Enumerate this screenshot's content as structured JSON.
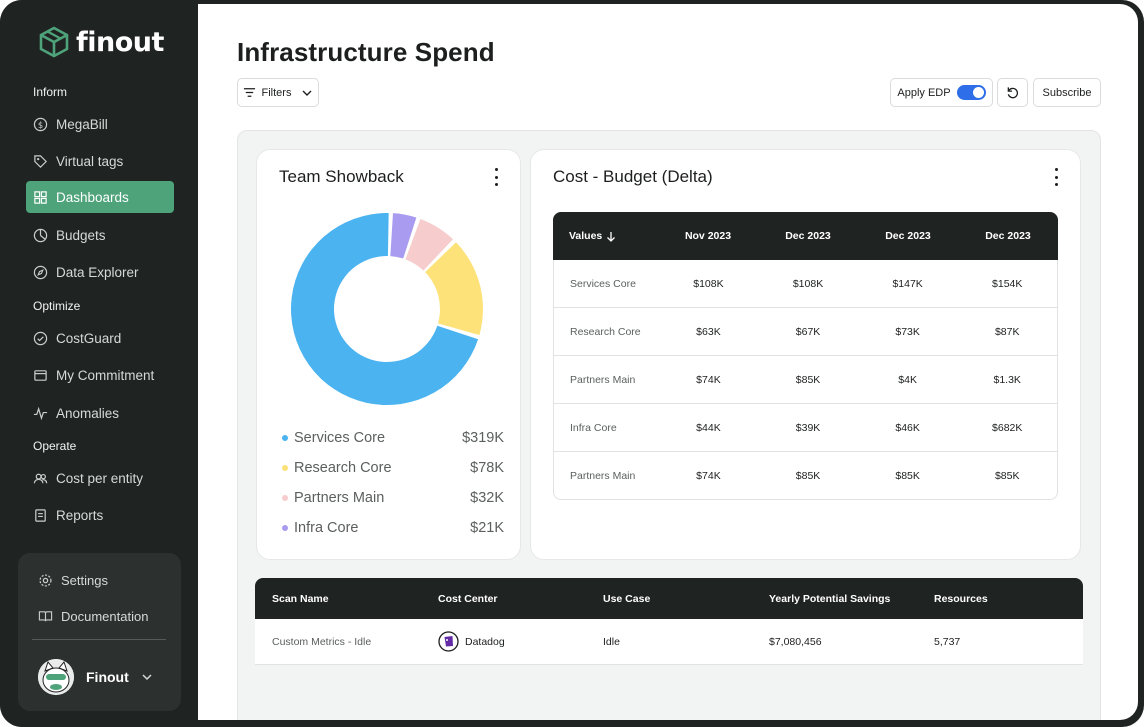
{
  "app": {
    "brand": "finout"
  },
  "sidebar": {
    "sections": {
      "inform": "Inform",
      "optimize": "Optimize",
      "operate": "Operate"
    },
    "items": [
      {
        "label": "MegaBill",
        "icon": "dollar-circle-icon"
      },
      {
        "label": "Virtual tags",
        "icon": "tag-icon"
      },
      {
        "label": "Dashboards",
        "icon": "grid-icon",
        "active": true
      },
      {
        "label": "Budgets",
        "icon": "pie-icon"
      },
      {
        "label": "Data Explorer",
        "icon": "compass-icon"
      },
      {
        "label": "CostGuard",
        "icon": "shield-check-icon"
      },
      {
        "label": "My Commitment",
        "icon": "folder-icon"
      },
      {
        "label": "Anomalies",
        "icon": "pulse-icon"
      },
      {
        "label": "Cost per entity",
        "icon": "users-icon"
      },
      {
        "label": "Reports",
        "icon": "document-icon"
      }
    ],
    "footer": {
      "settings": "Settings",
      "documentation": "Documentation",
      "user": "Finout"
    }
  },
  "header": {
    "title": "Infrastructure Spend",
    "filters_label": "Filters",
    "apply_edp_label": "Apply EDP",
    "apply_edp_on": true,
    "subscribe_label": "Subscribe"
  },
  "colors": {
    "accent": "#4ea37a",
    "dark": "#1f2322",
    "toggle": "#2e6ee8"
  },
  "team_showback": {
    "title": "Team Showback",
    "legend": [
      {
        "label": "Services Core",
        "value": "$319K",
        "color": "#4ab3f0"
      },
      {
        "label": "Research Core",
        "value": "$78K",
        "color": "#fde27a"
      },
      {
        "label": "Partners Main",
        "value": "$32K",
        "color": "#f7cccc"
      },
      {
        "label": "Infra Core",
        "value": "$21K",
        "color": "#a99cf0"
      }
    ]
  },
  "chart_data": {
    "type": "pie",
    "title": "Team Showback",
    "categories": [
      "Infra Core",
      "Partners Main",
      "Research Core",
      "Services Core"
    ],
    "values": [
      21,
      32,
      78,
      319
    ],
    "unit": "$K",
    "colors": [
      "#a99cf0",
      "#f7cccc",
      "#fde27a",
      "#4ab3f0"
    ]
  },
  "budget": {
    "title": "Cost - Budget (Delta)",
    "headers": [
      "Values",
      "Nov 2023",
      "Dec 2023",
      "Dec 2023",
      "Dec 2023"
    ],
    "rows": [
      [
        "Services Core",
        "$108K",
        "$108K",
        "$147K",
        "$154K"
      ],
      [
        "Research Core",
        "$63K",
        "$67K",
        "$73K",
        "$87K"
      ],
      [
        "Partners Main",
        "$74K",
        "$85K",
        "$4K",
        "$1.3K"
      ],
      [
        "Infra Core",
        "$44K",
        "$39K",
        "$46K",
        "$682K"
      ],
      [
        "Partners Main",
        "$74K",
        "$85K",
        "$85K",
        "$85K"
      ]
    ]
  },
  "scans": {
    "headers": [
      "Scan Name",
      "Cost Center",
      "Use Case",
      "Yearly Potential Savings",
      "Resources"
    ],
    "rows": [
      {
        "name": "Custom Metrics - Idle",
        "cost_center": "Datadog",
        "use_case": "Idle",
        "savings": "$7,080,456",
        "resources": "5,737"
      }
    ]
  }
}
